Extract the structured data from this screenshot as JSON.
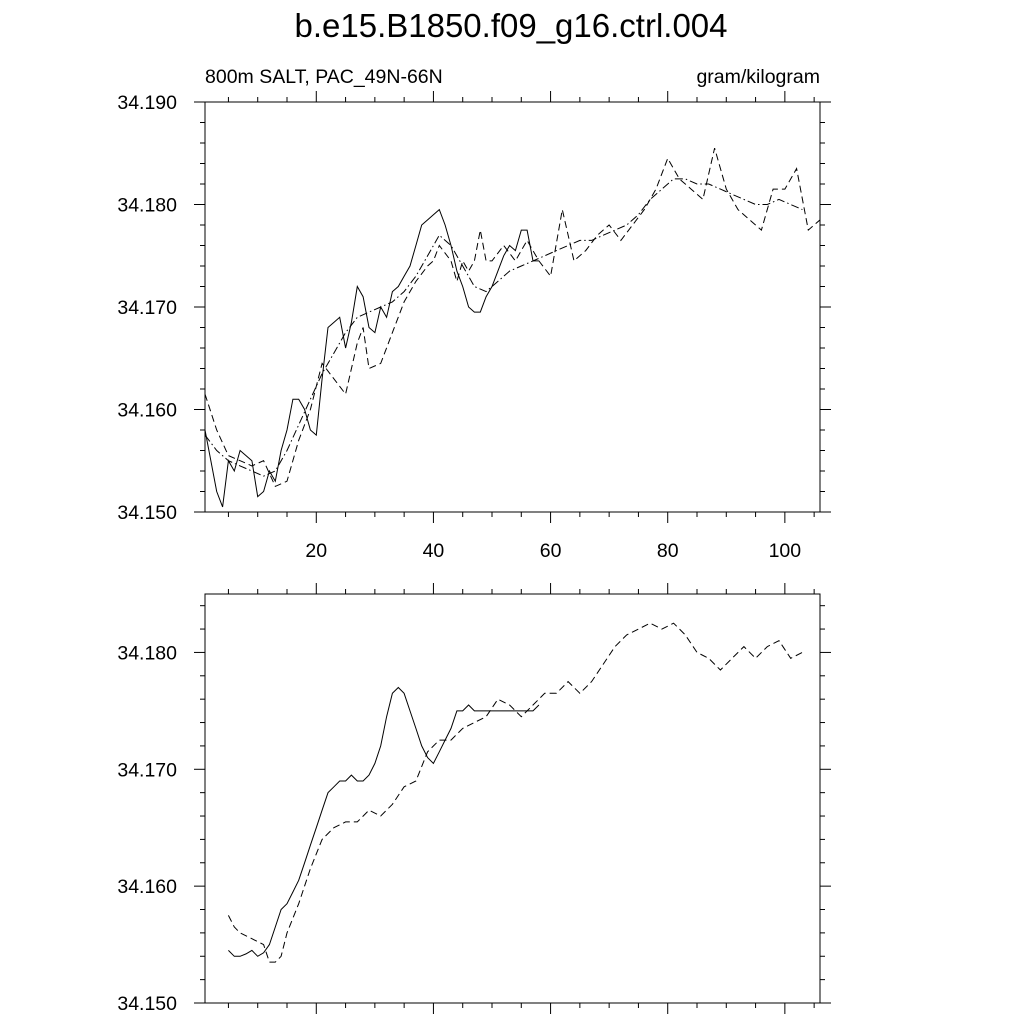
{
  "title": "b.e15.B1850.f09_g16.ctrl.004",
  "chart_data": [
    {
      "type": "line",
      "left_label": "800m SALT, PAC_49N-66N",
      "right_label": "gram/kilogram",
      "xlim": [
        1,
        106
      ],
      "ylim": [
        34.15,
        34.19
      ],
      "xticks": [
        20,
        40,
        60,
        80,
        100
      ],
      "xtick_labels": [
        "20",
        "40",
        "60",
        "80",
        "100"
      ],
      "yticks": [
        34.15,
        34.16,
        34.17,
        34.18,
        34.19
      ],
      "ytick_labels": [
        "34.150",
        "34.160",
        "34.170",
        "34.180",
        "34.190"
      ],
      "series": [
        {
          "style": "solid",
          "x": [
            1,
            3,
            4,
            5,
            6,
            7,
            8,
            9,
            10,
            11,
            12,
            13,
            14,
            15,
            16,
            17,
            18,
            19,
            20,
            21,
            22,
            23,
            24,
            25,
            26,
            27,
            28,
            29,
            30,
            31,
            32,
            33,
            34,
            35,
            36,
            37,
            38,
            39,
            40,
            41,
            42,
            43,
            44,
            45,
            46,
            47,
            48,
            49,
            50,
            51,
            52,
            53,
            54,
            55,
            56,
            57,
            58
          ],
          "y": [
            34.158,
            34.152,
            34.1505,
            34.155,
            34.154,
            34.156,
            34.1555,
            34.155,
            34.1515,
            34.152,
            34.154,
            34.153,
            34.156,
            34.158,
            34.161,
            34.161,
            34.16,
            34.158,
            34.1575,
            34.163,
            34.168,
            34.1685,
            34.169,
            34.166,
            34.1685,
            34.172,
            34.171,
            34.168,
            34.1675,
            34.17,
            34.169,
            34.1715,
            34.172,
            34.173,
            34.174,
            34.176,
            34.178,
            34.1785,
            34.179,
            34.1795,
            34.178,
            34.176,
            34.1735,
            34.172,
            34.17,
            34.1695,
            34.1695,
            34.171,
            34.172,
            34.1735,
            34.175,
            34.176,
            34.1755,
            34.1775,
            34.1775,
            34.1745,
            34.1745
          ]
        },
        {
          "style": "dash",
          "x": [
            1,
            3,
            5,
            7,
            9,
            11,
            13,
            15,
            17,
            19,
            21,
            23,
            25,
            27,
            28,
            29,
            31,
            33,
            35,
            37,
            39,
            40,
            41,
            43,
            44,
            45,
            46,
            47,
            48,
            49,
            50,
            52,
            54,
            56,
            58,
            60,
            62,
            64,
            66,
            68,
            70,
            72,
            74,
            76,
            78,
            80,
            82,
            84,
            86,
            88,
            90,
            92,
            94,
            96,
            98,
            100,
            102,
            104,
            106
          ],
          "y": [
            34.1615,
            34.158,
            34.1555,
            34.155,
            34.1545,
            34.155,
            34.1525,
            34.153,
            34.157,
            34.16,
            34.1645,
            34.163,
            34.1615,
            34.1665,
            34.168,
            34.164,
            34.1645,
            34.1675,
            34.1705,
            34.1725,
            34.174,
            34.1745,
            34.176,
            34.1745,
            34.1725,
            34.1745,
            34.1735,
            34.1745,
            34.1775,
            34.1745,
            34.1745,
            34.176,
            34.1745,
            34.1765,
            34.1745,
            34.173,
            34.1795,
            34.1745,
            34.1755,
            34.177,
            34.178,
            34.1765,
            34.178,
            34.1795,
            34.1815,
            34.1845,
            34.1825,
            34.1815,
            34.1805,
            34.1855,
            34.1815,
            34.1795,
            34.1785,
            34.1775,
            34.1815,
            34.1815,
            34.1835,
            34.1775,
            34.1785
          ]
        },
        {
          "style": "dashdot",
          "x": [
            1,
            3,
            5,
            7,
            9,
            11,
            13,
            15,
            17,
            19,
            21,
            23,
            25,
            27,
            29,
            31,
            33,
            35,
            37,
            39,
            41,
            43,
            45,
            47,
            49,
            51,
            53,
            55,
            57,
            59,
            61,
            63,
            65,
            67,
            69,
            71,
            73,
            75,
            77,
            79,
            81,
            83,
            85,
            87,
            89,
            91,
            93,
            95,
            97,
            99,
            101,
            103
          ],
          "y": [
            34.1575,
            34.156,
            34.155,
            34.1545,
            34.154,
            34.1535,
            34.154,
            34.156,
            34.1585,
            34.161,
            34.1635,
            34.1655,
            34.1675,
            34.169,
            34.1695,
            34.17,
            34.1705,
            34.1715,
            34.173,
            34.175,
            34.177,
            34.176,
            34.174,
            34.172,
            34.1715,
            34.1725,
            34.1735,
            34.174,
            34.1745,
            34.175,
            34.1755,
            34.176,
            34.1765,
            34.1765,
            34.177,
            34.1775,
            34.178,
            34.179,
            34.1805,
            34.1815,
            34.1825,
            34.1825,
            34.182,
            34.182,
            34.1815,
            34.181,
            34.1805,
            34.18,
            34.18,
            34.1805,
            34.18,
            34.1795
          ]
        }
      ]
    },
    {
      "type": "line",
      "xlim": [
        1,
        106
      ],
      "ylim": [
        34.15,
        34.185
      ],
      "xticks": [
        20,
        40,
        60,
        80,
        100
      ],
      "yticks": [
        34.15,
        34.16,
        34.17,
        34.18
      ],
      "ytick_labels": [
        "34.150",
        "34.160",
        "34.170",
        "34.180"
      ],
      "series": [
        {
          "style": "solid",
          "x": [
            5,
            6,
            7,
            8,
            9,
            10,
            11,
            12,
            13,
            14,
            15,
            16,
            17,
            18,
            19,
            20,
            21,
            22,
            23,
            24,
            25,
            26,
            27,
            28,
            29,
            30,
            31,
            32,
            33,
            34,
            35,
            36,
            37,
            38,
            39,
            40,
            41,
            42,
            43,
            44,
            45,
            46,
            47,
            48,
            49,
            50,
            51,
            52,
            53,
            54,
            55,
            56,
            57,
            58
          ],
          "y": [
            34.1545,
            34.154,
            34.154,
            34.1542,
            34.1545,
            34.154,
            34.1543,
            34.155,
            34.1565,
            34.158,
            34.1585,
            34.1595,
            34.1605,
            34.162,
            34.1635,
            34.165,
            34.1665,
            34.168,
            34.1685,
            34.169,
            34.169,
            34.1695,
            34.169,
            34.169,
            34.1695,
            34.1705,
            34.172,
            34.1745,
            34.1765,
            34.177,
            34.1765,
            34.175,
            34.1735,
            34.172,
            34.171,
            34.1705,
            34.1715,
            34.1725,
            34.1735,
            34.175,
            34.175,
            34.1755,
            34.175,
            34.175,
            34.175,
            34.175,
            34.175,
            34.175,
            34.175,
            34.175,
            34.175,
            34.175,
            34.175,
            34.1755
          ]
        },
        {
          "style": "dash",
          "x": [
            5,
            6,
            7,
            9,
            11,
            12,
            13,
            14,
            15,
            17,
            19,
            21,
            23,
            25,
            27,
            29,
            31,
            33,
            35,
            37,
            39,
            41,
            43,
            45,
            47,
            49,
            51,
            53,
            55,
            57,
            59,
            61,
            63,
            65,
            67,
            69,
            71,
            73,
            75,
            77,
            79,
            81,
            83,
            85,
            87,
            89,
            91,
            93,
            95,
            97,
            99,
            101,
            103
          ],
          "y": [
            34.1575,
            34.1565,
            34.156,
            34.1555,
            34.155,
            34.1535,
            34.1535,
            34.154,
            34.156,
            34.1585,
            34.1615,
            34.164,
            34.165,
            34.1655,
            34.1655,
            34.1665,
            34.166,
            34.167,
            34.1685,
            34.169,
            34.1715,
            34.1725,
            34.1725,
            34.1735,
            34.174,
            34.1745,
            34.176,
            34.1755,
            34.1745,
            34.1755,
            34.1765,
            34.1765,
            34.1775,
            34.1765,
            34.1775,
            34.179,
            34.1805,
            34.1815,
            34.182,
            34.1825,
            34.182,
            34.1825,
            34.1815,
            34.18,
            34.1795,
            34.1785,
            34.1795,
            34.1805,
            34.1795,
            34.1805,
            34.181,
            34.1795,
            34.18
          ]
        }
      ]
    }
  ]
}
